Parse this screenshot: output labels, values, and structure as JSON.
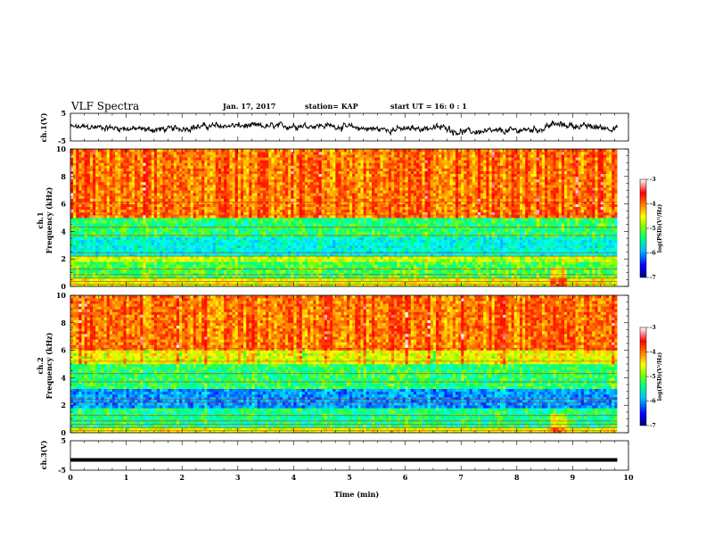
{
  "header": {
    "title": "VLF Spectra",
    "date": "Jan. 17, 2017",
    "station": "station= KAP",
    "start_ut": "start  UT =   16: 0  : 1"
  },
  "chart_data": [
    {
      "type": "line",
      "panel": "ch1-voltage",
      "ylabel": "ch.1(V)",
      "ylim": [
        -5,
        5
      ],
      "yticks": [
        "5",
        "-5"
      ],
      "xlim": [
        0,
        10
      ],
      "description_values": "noisy waveform between about -3 and 2 V"
    },
    {
      "type": "heatmap",
      "panel": "ch1-spectrogram",
      "ylabel": "ch.1 Frequency (kHz)",
      "ylim": [
        0,
        10
      ],
      "yticks": [
        "0",
        "2",
        "4",
        "6",
        "8",
        "10"
      ],
      "xlim": [
        0,
        9.8
      ],
      "bands": [
        {
          "from": 0,
          "to": 0.6,
          "level": -4.5
        },
        {
          "from": 0.6,
          "to": 1.8,
          "level": -5.0
        },
        {
          "from": 1.8,
          "to": 2.3,
          "level": -4.6
        },
        {
          "from": 2.3,
          "to": 3.7,
          "level": -5.5
        },
        {
          "from": 3.7,
          "to": 5.1,
          "level": -5.1
        },
        {
          "from": 5.1,
          "to": 10,
          "level": -3.9
        }
      ],
      "colorbar": {
        "label": "log(PSD)(V²/Hz)",
        "ticks": [
          "-3",
          "-4",
          "-5",
          "-6",
          "-7"
        ],
        "range": [
          -7,
          -3
        ]
      }
    },
    {
      "type": "heatmap",
      "panel": "ch2-spectrogram",
      "ylabel": "ch.2 Frequency (kHz)",
      "ylim": [
        0,
        10
      ],
      "yticks": [
        "0",
        "2",
        "4",
        "6",
        "8",
        "10"
      ],
      "xlim": [
        0,
        9.8
      ],
      "bands": [
        {
          "from": 0,
          "to": 0.5,
          "level": -4.5
        },
        {
          "from": 0.5,
          "to": 1.9,
          "level": -5.2
        },
        {
          "from": 1.9,
          "to": 3.3,
          "level": -6.0
        },
        {
          "from": 3.3,
          "to": 5.0,
          "level": -5.1
        },
        {
          "from": 5.0,
          "to": 6.0,
          "level": -4.5
        },
        {
          "from": 6.0,
          "to": 10,
          "level": -3.9
        }
      ],
      "colorbar": {
        "label": "log(PSD)(V²/Hz)",
        "ticks": [
          "-3",
          "-4",
          "-5",
          "-6",
          "-7"
        ],
        "range": [
          -7,
          -3
        ]
      }
    },
    {
      "type": "line",
      "panel": "ch3-voltage",
      "ylabel": "ch.3(V)",
      "ylim": [
        -5,
        5
      ],
      "yticks": [
        "5",
        "-5"
      ],
      "xlim": [
        0,
        10
      ],
      "constant_value": -1.5,
      "xlabel": "Time (min)",
      "xticks": [
        "0",
        "1",
        "2",
        "3",
        "4",
        "5",
        "6",
        "7",
        "8",
        "9",
        "10"
      ]
    }
  ],
  "colors": {
    "line": "#000000",
    "cmap": [
      "#000080",
      "#0000ff",
      "#00a0ff",
      "#00ffff",
      "#00ff60",
      "#80ff00",
      "#ffff00",
      "#ffa000",
      "#ff3000",
      "#ff0000",
      "#ffffff"
    ]
  }
}
